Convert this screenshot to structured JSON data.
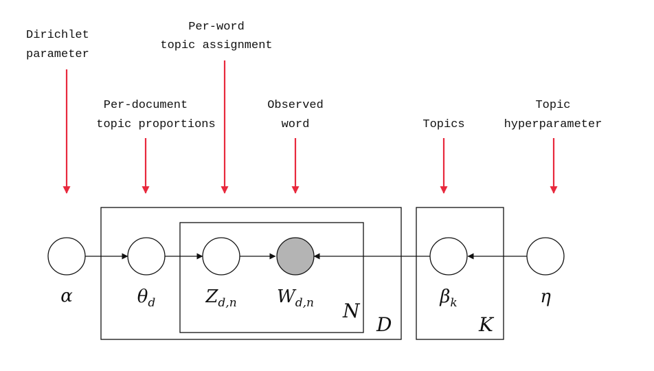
{
  "annotations": {
    "dirichlet": [
      "Dirichlet",
      "parameter"
    ],
    "per_document": [
      "Per-document",
      "topic proportions"
    ],
    "per_word": [
      "Per-word",
      "topic assignment"
    ],
    "observed": [
      "Observed",
      "word"
    ],
    "topics": [
      "Topics"
    ],
    "hyperparameter": [
      "Topic",
      "hyperparameter"
    ]
  },
  "nodes": {
    "alpha": {
      "symbol": "α",
      "subscript": ""
    },
    "theta": {
      "symbol": "θ",
      "subscript": "d"
    },
    "z": {
      "symbol": "Z",
      "subscript": "d,n"
    },
    "w": {
      "symbol": "W",
      "subscript": "d,n"
    },
    "beta": {
      "symbol": "β",
      "subscript": "k"
    },
    "eta": {
      "symbol": "η",
      "subscript": ""
    }
  },
  "plates": {
    "words": "N",
    "documents": "D",
    "topics": "K"
  },
  "colors": {
    "annotation_arrow": "#e8283c",
    "observed_fill": "#b4b4b4",
    "latent_fill": "#ffffff"
  }
}
